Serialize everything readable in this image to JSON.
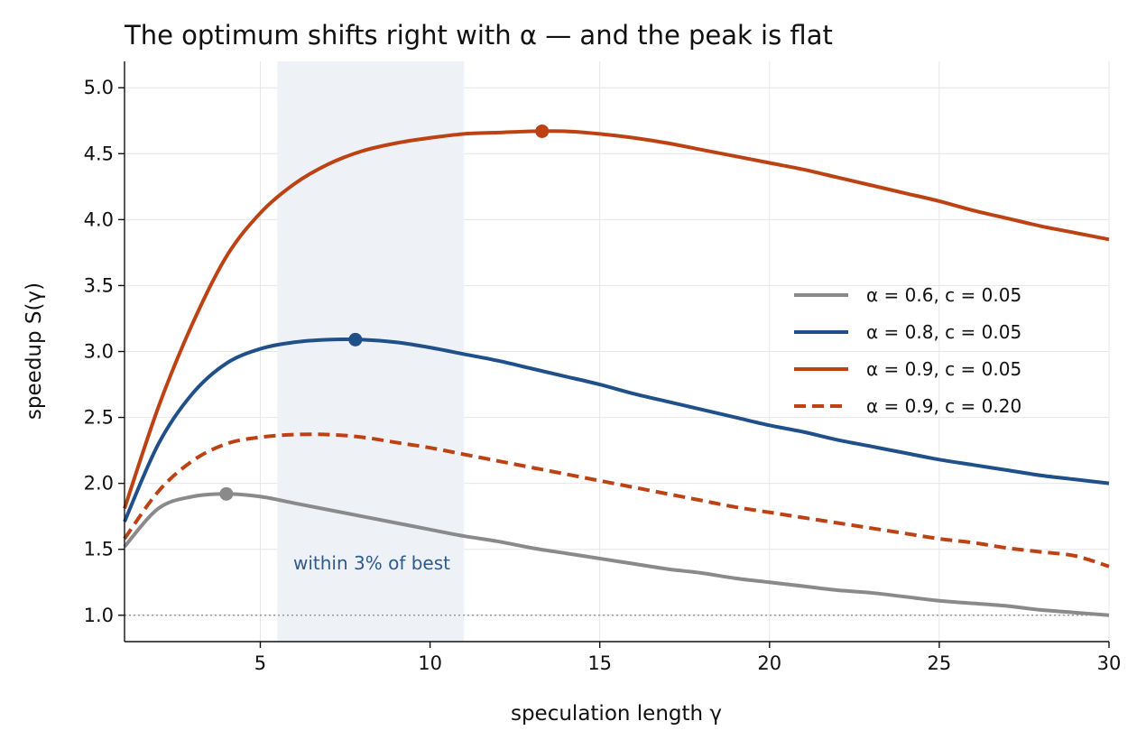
{
  "chart_data": {
    "type": "line",
    "title": "The optimum shifts right with α — and the peak is flat",
    "xlabel": "speculation length  γ",
    "ylabel": "speedup  S(γ)",
    "xlim": [
      1,
      30
    ],
    "ylim": [
      0.8,
      5.2
    ],
    "xticks": [
      5,
      10,
      15,
      20,
      25,
      30
    ],
    "yticks": [
      1.0,
      1.5,
      2.0,
      2.5,
      3.0,
      3.5,
      4.0,
      4.5,
      5.0
    ],
    "grid": true,
    "legend_position": "right",
    "series": [
      {
        "name": "α = 0.6,  c = 0.05",
        "color": "#8a8a8a",
        "style": "solid",
        "x": [
          1,
          2,
          3,
          4,
          5,
          6,
          7,
          8,
          9,
          10,
          11,
          12,
          13,
          14,
          15,
          16,
          17,
          18,
          19,
          20,
          21,
          22,
          23,
          24,
          25,
          26,
          27,
          28,
          29,
          30
        ],
        "y": [
          1.52,
          1.81,
          1.9,
          1.92,
          1.9,
          1.85,
          1.8,
          1.75,
          1.7,
          1.65,
          1.6,
          1.56,
          1.51,
          1.47,
          1.43,
          1.39,
          1.35,
          1.32,
          1.28,
          1.25,
          1.22,
          1.19,
          1.17,
          1.14,
          1.11,
          1.09,
          1.07,
          1.04,
          1.02,
          1.0
        ],
        "peak": {
          "x": 4,
          "y": 1.92
        }
      },
      {
        "name": "α = 0.8,  c = 0.05",
        "color": "#1f5089",
        "style": "solid",
        "x": [
          1,
          2,
          3,
          4,
          5,
          6,
          7,
          8,
          9,
          10,
          11,
          12,
          13,
          14,
          15,
          16,
          17,
          18,
          19,
          20,
          21,
          22,
          23,
          24,
          25,
          26,
          27,
          28,
          29,
          30
        ],
        "y": [
          1.71,
          2.3,
          2.68,
          2.91,
          3.02,
          3.07,
          3.09,
          3.09,
          3.07,
          3.03,
          2.98,
          2.93,
          2.87,
          2.81,
          2.75,
          2.68,
          2.62,
          2.56,
          2.5,
          2.44,
          2.39,
          2.33,
          2.28,
          2.23,
          2.18,
          2.14,
          2.1,
          2.06,
          2.03,
          2.0
        ],
        "peak": {
          "x": 7.8,
          "y": 3.09
        }
      },
      {
        "name": "α = 0.9,  c = 0.05",
        "color": "#bd4213",
        "style": "solid",
        "x": [
          1,
          2,
          3,
          4,
          5,
          6,
          7,
          8,
          9,
          10,
          11,
          12,
          13,
          14,
          15,
          16,
          17,
          18,
          19,
          20,
          21,
          22,
          23,
          24,
          25,
          26,
          27,
          28,
          29,
          30
        ],
        "y": [
          1.81,
          2.58,
          3.21,
          3.72,
          4.05,
          4.27,
          4.42,
          4.52,
          4.58,
          4.62,
          4.65,
          4.66,
          4.67,
          4.67,
          4.65,
          4.62,
          4.58,
          4.53,
          4.48,
          4.43,
          4.38,
          4.32,
          4.26,
          4.2,
          4.14,
          4.07,
          4.01,
          3.95,
          3.9,
          3.85
        ],
        "peak": {
          "x": 13.3,
          "y": 4.67
        }
      },
      {
        "name": "α = 0.9,  c = 0.20",
        "color": "#bd4213",
        "style": "dashed",
        "x": [
          1,
          2,
          3,
          4,
          5,
          6,
          7,
          8,
          9,
          10,
          11,
          12,
          13,
          14,
          15,
          16,
          17,
          18,
          19,
          20,
          21,
          22,
          23,
          24,
          25,
          26,
          27,
          28,
          29,
          30
        ],
        "y": [
          1.58,
          1.94,
          2.17,
          2.3,
          2.35,
          2.37,
          2.37,
          2.35,
          2.31,
          2.27,
          2.22,
          2.17,
          2.12,
          2.07,
          2.02,
          1.97,
          1.92,
          1.87,
          1.82,
          1.78,
          1.74,
          1.7,
          1.66,
          1.62,
          1.58,
          1.55,
          1.51,
          1.48,
          1.45,
          1.37
        ]
      }
    ],
    "reference_line": {
      "y": 1.0,
      "style": "dotted",
      "color": "#999999"
    },
    "shaded_band": {
      "x": [
        5.5,
        11.0
      ],
      "color": "#eef2f7",
      "label": "within 3% of best",
      "label_color": "#2f5a8c"
    }
  }
}
